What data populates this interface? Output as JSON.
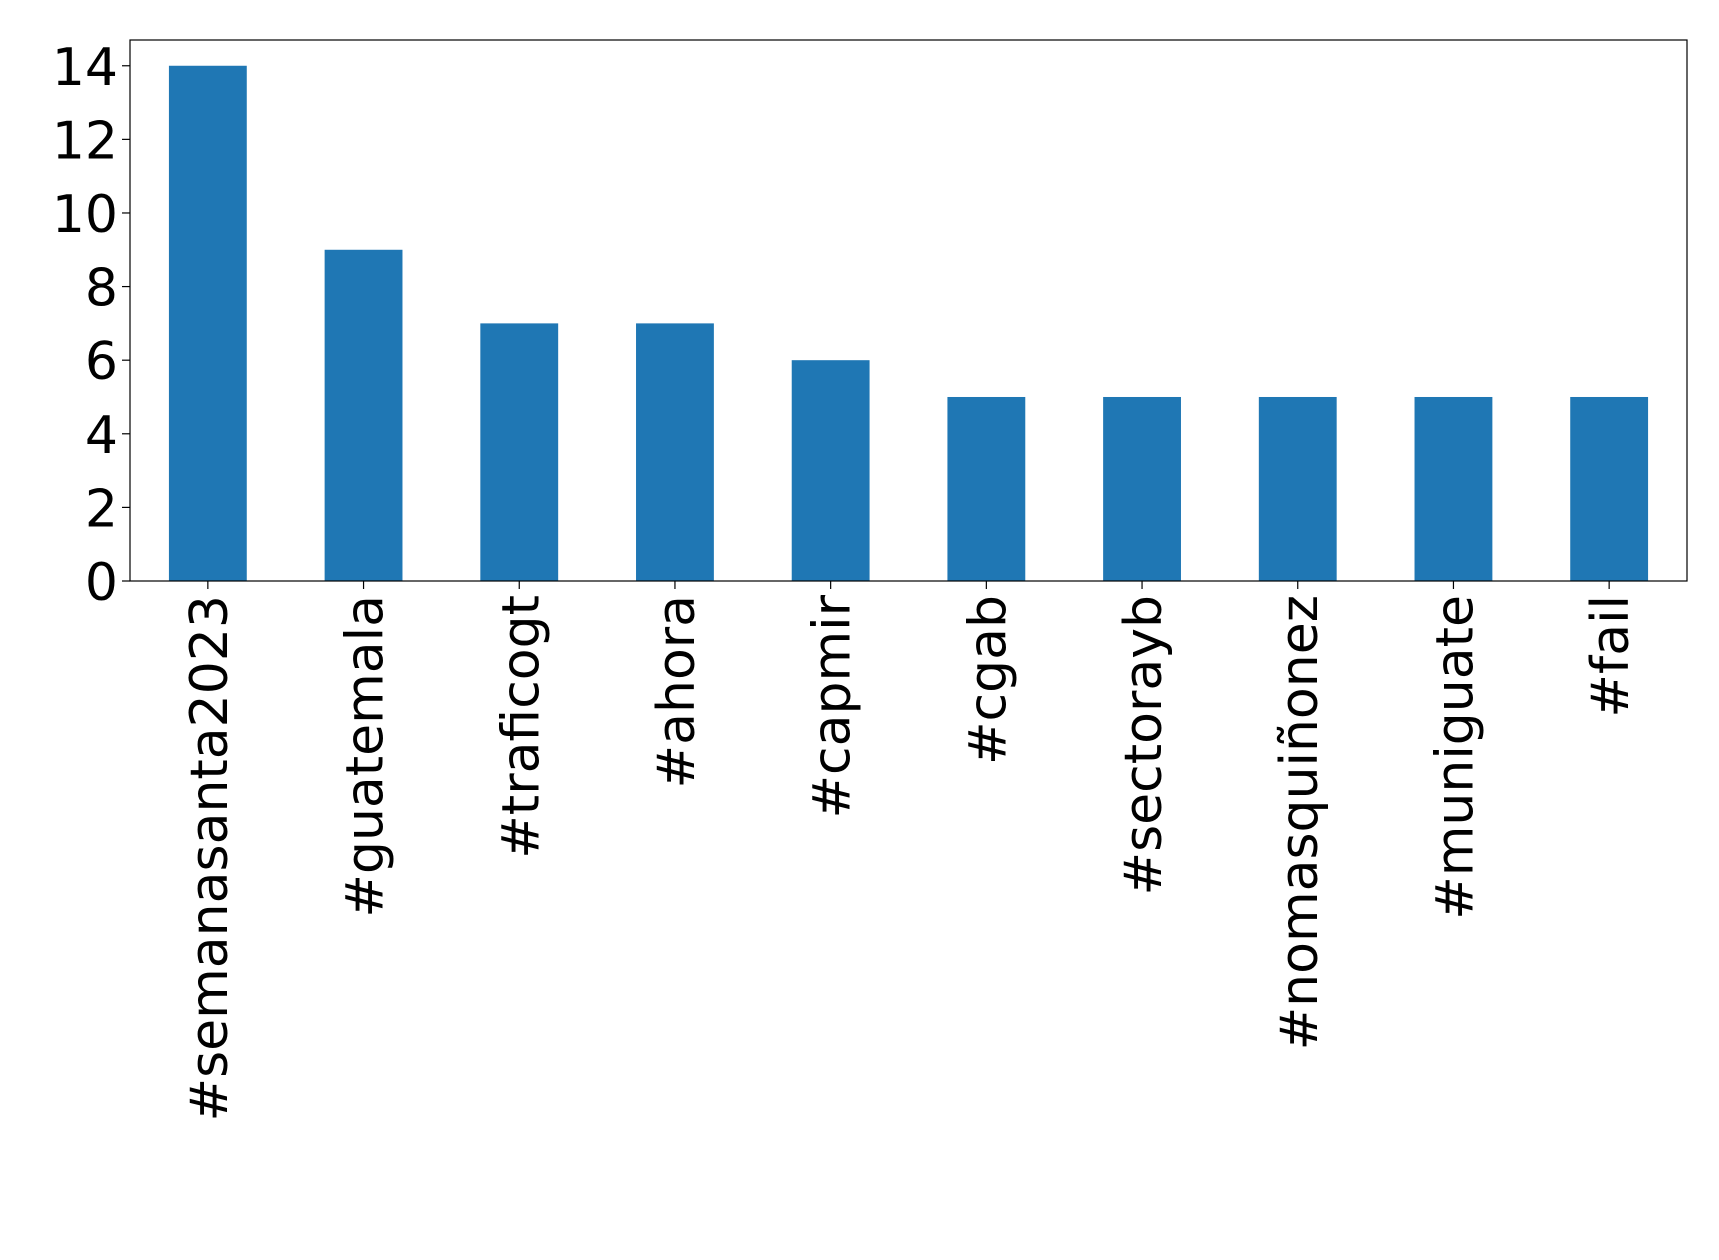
{
  "chart_data": {
    "type": "bar",
    "categories": [
      "#semanasanta2023",
      "#guatemala",
      "#traficogt",
      "#ahora",
      "#capmir",
      "#cgab",
      "#sectorayb",
      "#nomasquiñonez",
      "#muniguate",
      "#fail"
    ],
    "values": [
      14,
      9,
      7,
      7,
      6,
      5,
      5,
      5,
      5,
      5
    ],
    "color": "#1f77b4",
    "ylim": [
      0,
      14.7
    ],
    "yticks": [
      0,
      2,
      4,
      6,
      8,
      10,
      12,
      14
    ],
    "grid": false
  }
}
